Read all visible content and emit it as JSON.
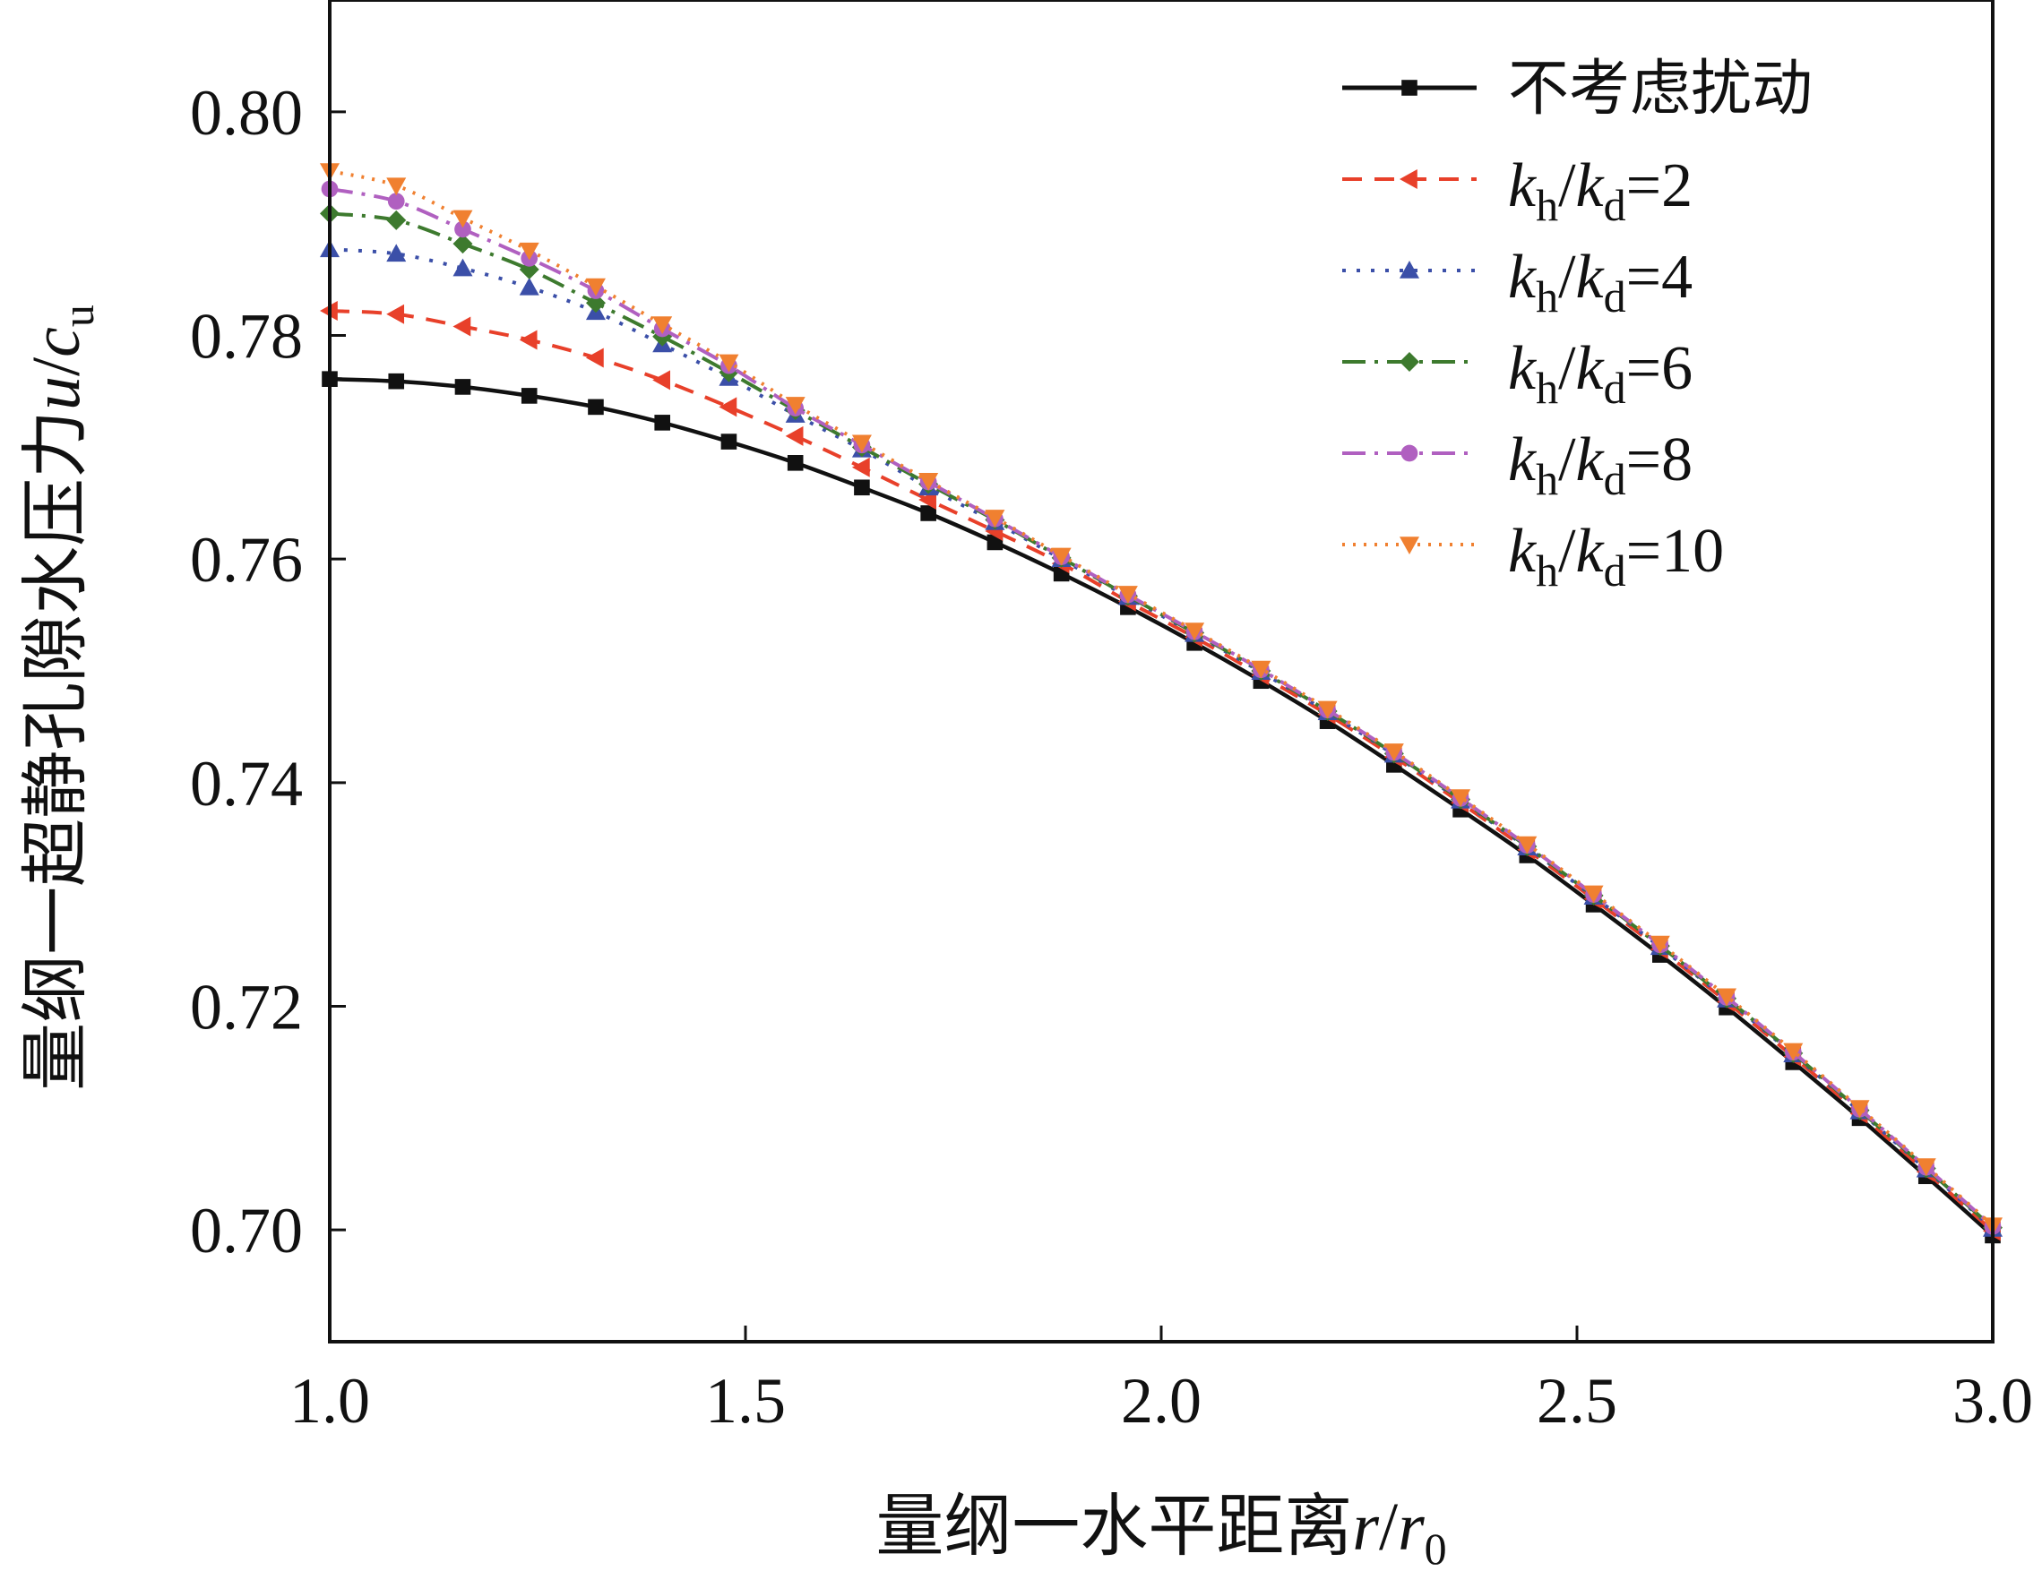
{
  "chart_data": {
    "type": "line",
    "xlabel": {
      "text": "量纲一水平距离",
      "var": "r",
      "var_sub": "",
      "sep": "/",
      "var2": "r",
      "var2_sub": "0"
    },
    "ylabel": {
      "text": "量纲一超静孔隙水压力",
      "var": "u",
      "var_sub": "",
      "sep": "/",
      "var2": "c",
      "var2_sub": "u"
    },
    "xlim": [
      1.0,
      3.0
    ],
    "ylim": [
      0.69,
      0.81
    ],
    "xticks": [
      1.0,
      1.5,
      2.0,
      2.5,
      3.0
    ],
    "xtick_labels": [
      "1.0",
      "1.5",
      "2.0",
      "2.5",
      "3.0"
    ],
    "yticks": [
      0.7,
      0.72,
      0.74,
      0.76,
      0.78,
      0.8
    ],
    "ytick_labels": [
      "0.70",
      "0.72",
      "0.74",
      "0.76",
      "0.78",
      "0.80"
    ],
    "grid": false,
    "legend_position": "top-right",
    "x": [
      1.0,
      1.08,
      1.16,
      1.24,
      1.32,
      1.4,
      1.48,
      1.56,
      1.64,
      1.72,
      1.8,
      1.88,
      1.96,
      2.04,
      2.12,
      2.2,
      2.28,
      2.36,
      2.44,
      2.52,
      2.6,
      2.68,
      2.76,
      2.84,
      2.92,
      3.0
    ],
    "series": [
      {
        "name": "不考虑扰动",
        "name_cn": true,
        "ratio": "",
        "color": "#111111",
        "dash": "",
        "marker": "square",
        "values": [
          0.7761,
          0.7759,
          0.7754,
          0.7746,
          0.7736,
          0.7722,
          0.7705,
          0.7686,
          0.7664,
          0.7641,
          0.7615,
          0.7587,
          0.7557,
          0.7525,
          0.7491,
          0.7455,
          0.7416,
          0.7376,
          0.7335,
          0.7291,
          0.7246,
          0.7199,
          0.715,
          0.71,
          0.7048,
          0.6995
        ]
      },
      {
        "name": "",
        "name_cn": false,
        "ratio": "2",
        "color": "#e8402a",
        "dash": "22,14",
        "marker": "tri-left",
        "values": [
          0.7822,
          0.7819,
          0.7808,
          0.7796,
          0.778,
          0.776,
          0.7736,
          0.771,
          0.7682,
          0.7653,
          0.7625,
          0.7596,
          0.7562,
          0.753,
          0.7496,
          0.7461,
          0.7423,
          0.7382,
          0.734,
          0.7296,
          0.7251,
          0.7204,
          0.7155,
          0.7104,
          0.7052,
          0.6999
        ]
      },
      {
        "name": "",
        "name_cn": false,
        "ratio": "4",
        "color": "#3b4fa8",
        "dash": "4,12",
        "marker": "tri-up",
        "values": [
          0.7877,
          0.7873,
          0.786,
          0.7843,
          0.7821,
          0.7792,
          0.7762,
          0.7729,
          0.7698,
          0.7664,
          0.7633,
          0.76,
          0.7566,
          0.7533,
          0.7499,
          0.7463,
          0.7425,
          0.7384,
          0.7342,
          0.7298,
          0.7253,
          0.7206,
          0.7157,
          0.7106,
          0.7054,
          0.7001
        ]
      },
      {
        "name": "",
        "name_cn": false,
        "ratio": "6",
        "color": "#3d7a2e",
        "dash": "26,10,4,10",
        "marker": "diamond",
        "values": [
          0.7909,
          0.7903,
          0.7882,
          0.7859,
          0.7829,
          0.7799,
          0.7767,
          0.7733,
          0.77,
          0.7667,
          0.7635,
          0.7601,
          0.7567,
          0.7534,
          0.75,
          0.7464,
          0.7426,
          0.7385,
          0.7343,
          0.7299,
          0.7254,
          0.7207,
          0.7158,
          0.7107,
          0.7055,
          0.7002
        ]
      },
      {
        "name": "",
        "name_cn": false,
        "ratio": "8",
        "color": "#b060c0",
        "dash": "26,10,4,10",
        "marker": "circle",
        "values": [
          0.7931,
          0.792,
          0.7895,
          0.7869,
          0.784,
          0.7806,
          0.7773,
          0.7735,
          0.7702,
          0.7669,
          0.7636,
          0.7602,
          0.7568,
          0.7535,
          0.7501,
          0.7465,
          0.7427,
          0.7386,
          0.7344,
          0.73,
          0.7255,
          0.7208,
          0.7159,
          0.7108,
          0.7056,
          0.7003
        ]
      },
      {
        "name": "",
        "name_cn": false,
        "ratio": "10",
        "color": "#f08030",
        "dash": "3,9",
        "marker": "tri-down",
        "values": [
          0.7947,
          0.7934,
          0.7905,
          0.7876,
          0.7844,
          0.781,
          0.7776,
          0.7738,
          0.7704,
          0.767,
          0.7637,
          0.7603,
          0.7569,
          0.7536,
          0.7502,
          0.7466,
          0.7428,
          0.7387,
          0.7345,
          0.7301,
          0.7256,
          0.7209,
          0.716,
          0.7109,
          0.7057,
          0.7004
        ]
      }
    ]
  }
}
